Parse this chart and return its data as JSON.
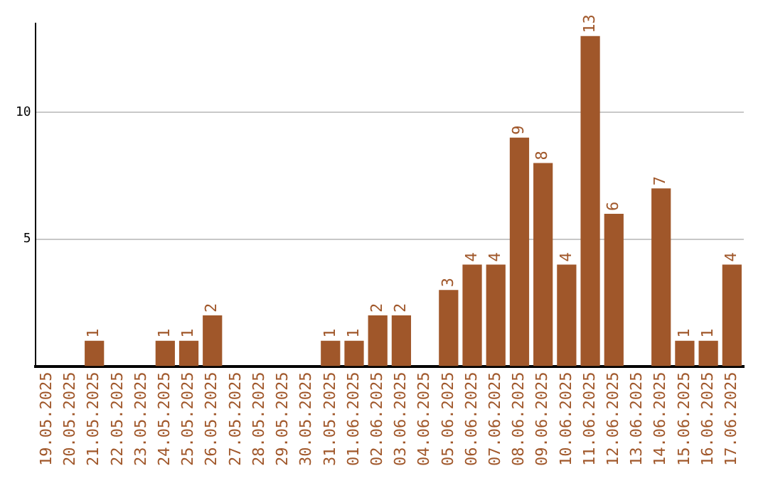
{
  "chart_data": {
    "type": "bar",
    "categories": [
      "19.05.2025",
      "20.05.2025",
      "21.05.2025",
      "22.05.2025",
      "23.05.2025",
      "24.05.2025",
      "25.05.2025",
      "26.05.2025",
      "27.05.2025",
      "28.05.2025",
      "29.05.2025",
      "30.05.2025",
      "31.05.2025",
      "01.06.2025",
      "02.06.2025",
      "03.06.2025",
      "04.06.2025",
      "05.06.2025",
      "06.06.2025",
      "07.06.2025",
      "08.06.2025",
      "09.06.2025",
      "10.06.2025",
      "11.06.2025",
      "12.06.2025",
      "13.06.2025",
      "14.06.2025",
      "15.06.2025",
      "16.06.2025",
      "17.06.2025"
    ],
    "values": [
      null,
      null,
      1,
      null,
      null,
      1,
      1,
      2,
      null,
      null,
      null,
      null,
      1,
      1,
      2,
      2,
      null,
      3,
      4,
      4,
      9,
      8,
      4,
      13,
      6,
      null,
      7,
      1,
      1,
      4
    ],
    "color": "#a0572a",
    "ylim": [
      0,
      13.5
    ],
    "yticks": [
      5,
      10
    ],
    "grid": "y",
    "data_labels": true,
    "legend": false
  }
}
